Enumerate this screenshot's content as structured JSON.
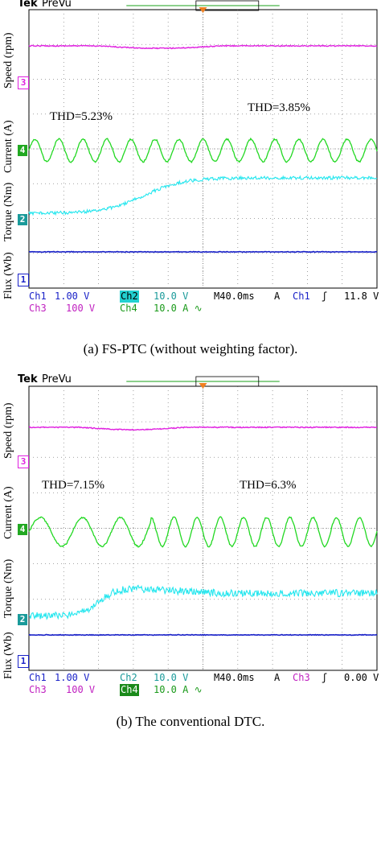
{
  "panels": [
    {
      "header": {
        "brand": "Tek",
        "mode": "PreVu"
      },
      "axis_labels": [
        "Speed (rpm)",
        "Current (A)",
        "Torque (Nm)",
        "Flux (Wb)"
      ],
      "markers": [
        "3",
        "4",
        "2",
        "1"
      ],
      "thd_left": "THD=5.23%",
      "thd_right": "THD=3.85%",
      "status": {
        "ch1": "Ch1",
        "ch1_val": "1.00 V",
        "ch2": "Ch2",
        "ch2_val": "10.0 V",
        "ch3": "Ch3",
        "ch3_val": "100 V",
        "ch4": "Ch4",
        "ch4_val": "10.0 A ∿",
        "timebase": "M40.0ms",
        "trig_mode": "A",
        "trig_ch": "Ch1",
        "trig_slope": "ʃ",
        "trig_level": "11.8 V"
      },
      "caption": "(a) FS-PTC (without weighting factor).",
      "colors": {
        "speed": "#e020e0",
        "current": "#22d822",
        "torque": "#22e6ee",
        "flux": "#1a22c8"
      }
    },
    {
      "header": {
        "brand": "Tek",
        "mode": "PreVu"
      },
      "axis_labels": [
        "Speed (rpm)",
        "Current (A)",
        "Torque (Nm)",
        "Flux (Wb)"
      ],
      "markers": [
        "3",
        "4",
        "2",
        "1"
      ],
      "thd_left": "THD=7.15%",
      "thd_right": "THD=6.3%",
      "status": {
        "ch1": "Ch1",
        "ch1_val": "1.00 V",
        "ch2": "Ch2",
        "ch2_val": "10.0 V",
        "ch3": "Ch3",
        "ch3_val": "100 V",
        "ch4": "Ch4",
        "ch4_val": "10.0 A ∿",
        "timebase": "M40.0ms",
        "trig_mode": "A",
        "trig_ch": "Ch3",
        "trig_slope": "ʃ",
        "trig_level": "0.00 V"
      },
      "caption": "(b) The conventional DTC.",
      "colors": {
        "speed": "#e020e0",
        "current": "#22d822",
        "torque": "#22e6ee",
        "flux": "#1a22c8"
      }
    }
  ]
}
